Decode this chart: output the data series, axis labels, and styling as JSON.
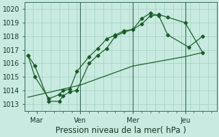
{
  "xlabel": "Pression niveau de la mer( hPa )",
  "bg_color": "#c8eae0",
  "grid_color": "#a0d0c0",
  "line_color": "#1a5c28",
  "ylim": [
    1012.5,
    1020.5
  ],
  "xlim": [
    -0.2,
    10.8
  ],
  "xtick_labels": [
    "Mar",
    "Ven",
    "Mer",
    "Jeu"
  ],
  "xtick_positions": [
    0.5,
    3.0,
    6.0,
    9.0
  ],
  "ytick_positions": [
    1013,
    1014,
    1015,
    1016,
    1017,
    1018,
    1019,
    1020
  ],
  "vline_positions": [
    3.0,
    6.0,
    9.0
  ],
  "line1_x": [
    0.0,
    0.4,
    1.2,
    1.8,
    2.0,
    2.4,
    2.8,
    3.5,
    4.0,
    4.5,
    5.0,
    5.5,
    6.0,
    6.5,
    7.0,
    7.5,
    8.0,
    9.0,
    10.0
  ],
  "line1_y": [
    1016.6,
    1015.8,
    1013.2,
    1013.2,
    1013.6,
    1013.9,
    1014.0,
    1016.0,
    1016.6,
    1017.1,
    1018.0,
    1018.3,
    1018.5,
    1018.9,
    1019.5,
    1019.6,
    1019.4,
    1019.0,
    1016.8
  ],
  "line2_x": [
    0.0,
    0.4,
    1.2,
    1.8,
    2.0,
    2.4,
    2.8,
    3.5,
    4.0,
    4.5,
    5.0,
    5.5,
    6.0,
    6.5,
    7.0,
    7.5,
    8.0,
    9.2,
    10.0
  ],
  "line2_y": [
    1016.6,
    1015.0,
    1013.4,
    1013.7,
    1014.0,
    1014.1,
    1015.4,
    1016.5,
    1017.1,
    1017.8,
    1018.1,
    1018.4,
    1018.5,
    1019.3,
    1019.7,
    1019.5,
    1018.1,
    1017.2,
    1018.0
  ],
  "line3_x": [
    0.0,
    3.0,
    6.0,
    9.0,
    10.0
  ],
  "line3_y": [
    1013.5,
    1014.4,
    1015.8,
    1016.5,
    1016.8
  ],
  "label_fontsize": 8.5,
  "tick_fontsize": 7.0
}
